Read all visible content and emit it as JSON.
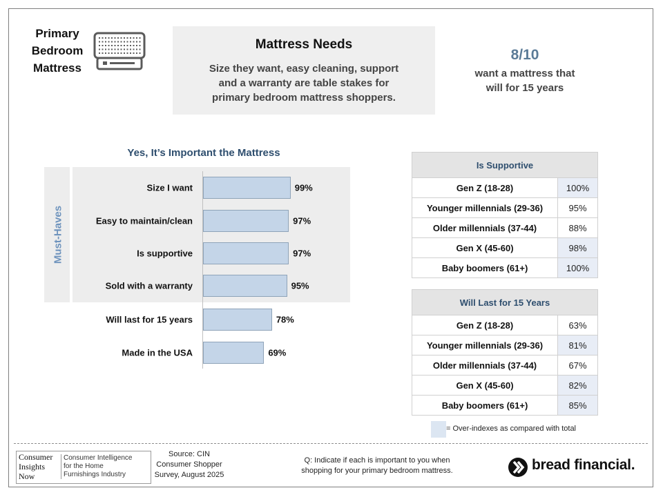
{
  "header": {
    "title_lines": [
      "Primary",
      "Bedroom",
      "Mattress"
    ],
    "icon": "mattress-icon"
  },
  "needs": {
    "title": "Mattress Needs",
    "subtitle_lines": [
      "Size they want, easy cleaning, support",
      "and a warranty are table stakes for",
      "primary bedroom mattress shoppers."
    ]
  },
  "stat": {
    "value": "8/10",
    "text_lines": [
      "want a mattress that",
      "will for 15 years"
    ]
  },
  "chart_data": {
    "type": "bar",
    "orientation": "horizontal",
    "title": "Yes, It’s Important the Mattress",
    "group_label": "Must-Haves",
    "categories": [
      "Size I want",
      "Easy to maintain/clean",
      "Is supportive",
      "Sold with a warranty",
      "Will last for 15 years",
      "Made in the USA"
    ],
    "values": [
      99,
      97,
      97,
      95,
      78,
      69
    ],
    "value_labels": [
      "99%",
      "97%",
      "97%",
      "95%",
      "78%",
      "69%"
    ],
    "must_have_count": 4,
    "xlim": [
      0,
      100
    ],
    "bar_color": "#c4d5e8",
    "grid": false
  },
  "tables": [
    {
      "title": "Is Supportive",
      "rows": [
        {
          "group": "Gen Z (18-28)",
          "value": "100%",
          "over": true
        },
        {
          "group": "Younger millennials (29-36)",
          "value": "95%",
          "over": false
        },
        {
          "group": "Older millennials (37-44)",
          "value": "88%",
          "over": false
        },
        {
          "group": "Gen X (45-60)",
          "value": "98%",
          "over": true
        },
        {
          "group": "Baby boomers (61+)",
          "value": "100%",
          "over": true
        }
      ]
    },
    {
      "title": "Will Last for 15 Years",
      "rows": [
        {
          "group": "Gen Z (18-28)",
          "value": "63%",
          "over": false
        },
        {
          "group": "Younger millennials (29-36)",
          "value": "81%",
          "over": true
        },
        {
          "group": "Older millennials (37-44)",
          "value": "67%",
          "over": false
        },
        {
          "group": "Gen X (45-60)",
          "value": "82%",
          "over": true
        },
        {
          "group": "Baby boomers (61+)",
          "value": "85%",
          "over": true
        }
      ]
    }
  ],
  "legend": {
    "text": "= Over-indexes as compared with total",
    "color": "#dce6f2"
  },
  "footer": {
    "cin_logo_lines": [
      "Consumer",
      "Insights",
      "Now"
    ],
    "cin_tagline_lines": [
      "Consumer Intelligence",
      "for the Home",
      "Furnishings Industry"
    ],
    "source_lines": [
      "Source: CIN",
      "Consumer Shopper",
      "Survey, August 2025"
    ],
    "question_lines": [
      "Q:  Indicate if each is important to you when",
      "shopping for your primary bedroom mattress."
    ],
    "brand": "bread financial."
  }
}
